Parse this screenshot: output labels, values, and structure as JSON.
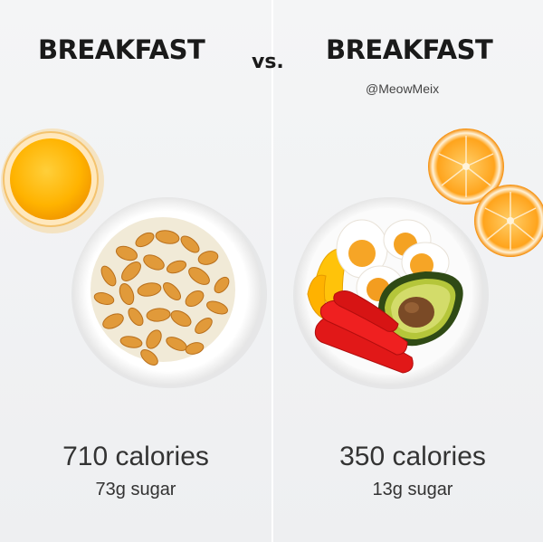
{
  "left": {
    "title": "BREAKFAST",
    "calories": "710 calories",
    "sugar": "73g sugar"
  },
  "vs": "vs.",
  "right": {
    "title": "BREAKFAST",
    "handle": "@MeowMeix",
    "calories": "350 calories",
    "sugar": "13g sugar"
  }
}
